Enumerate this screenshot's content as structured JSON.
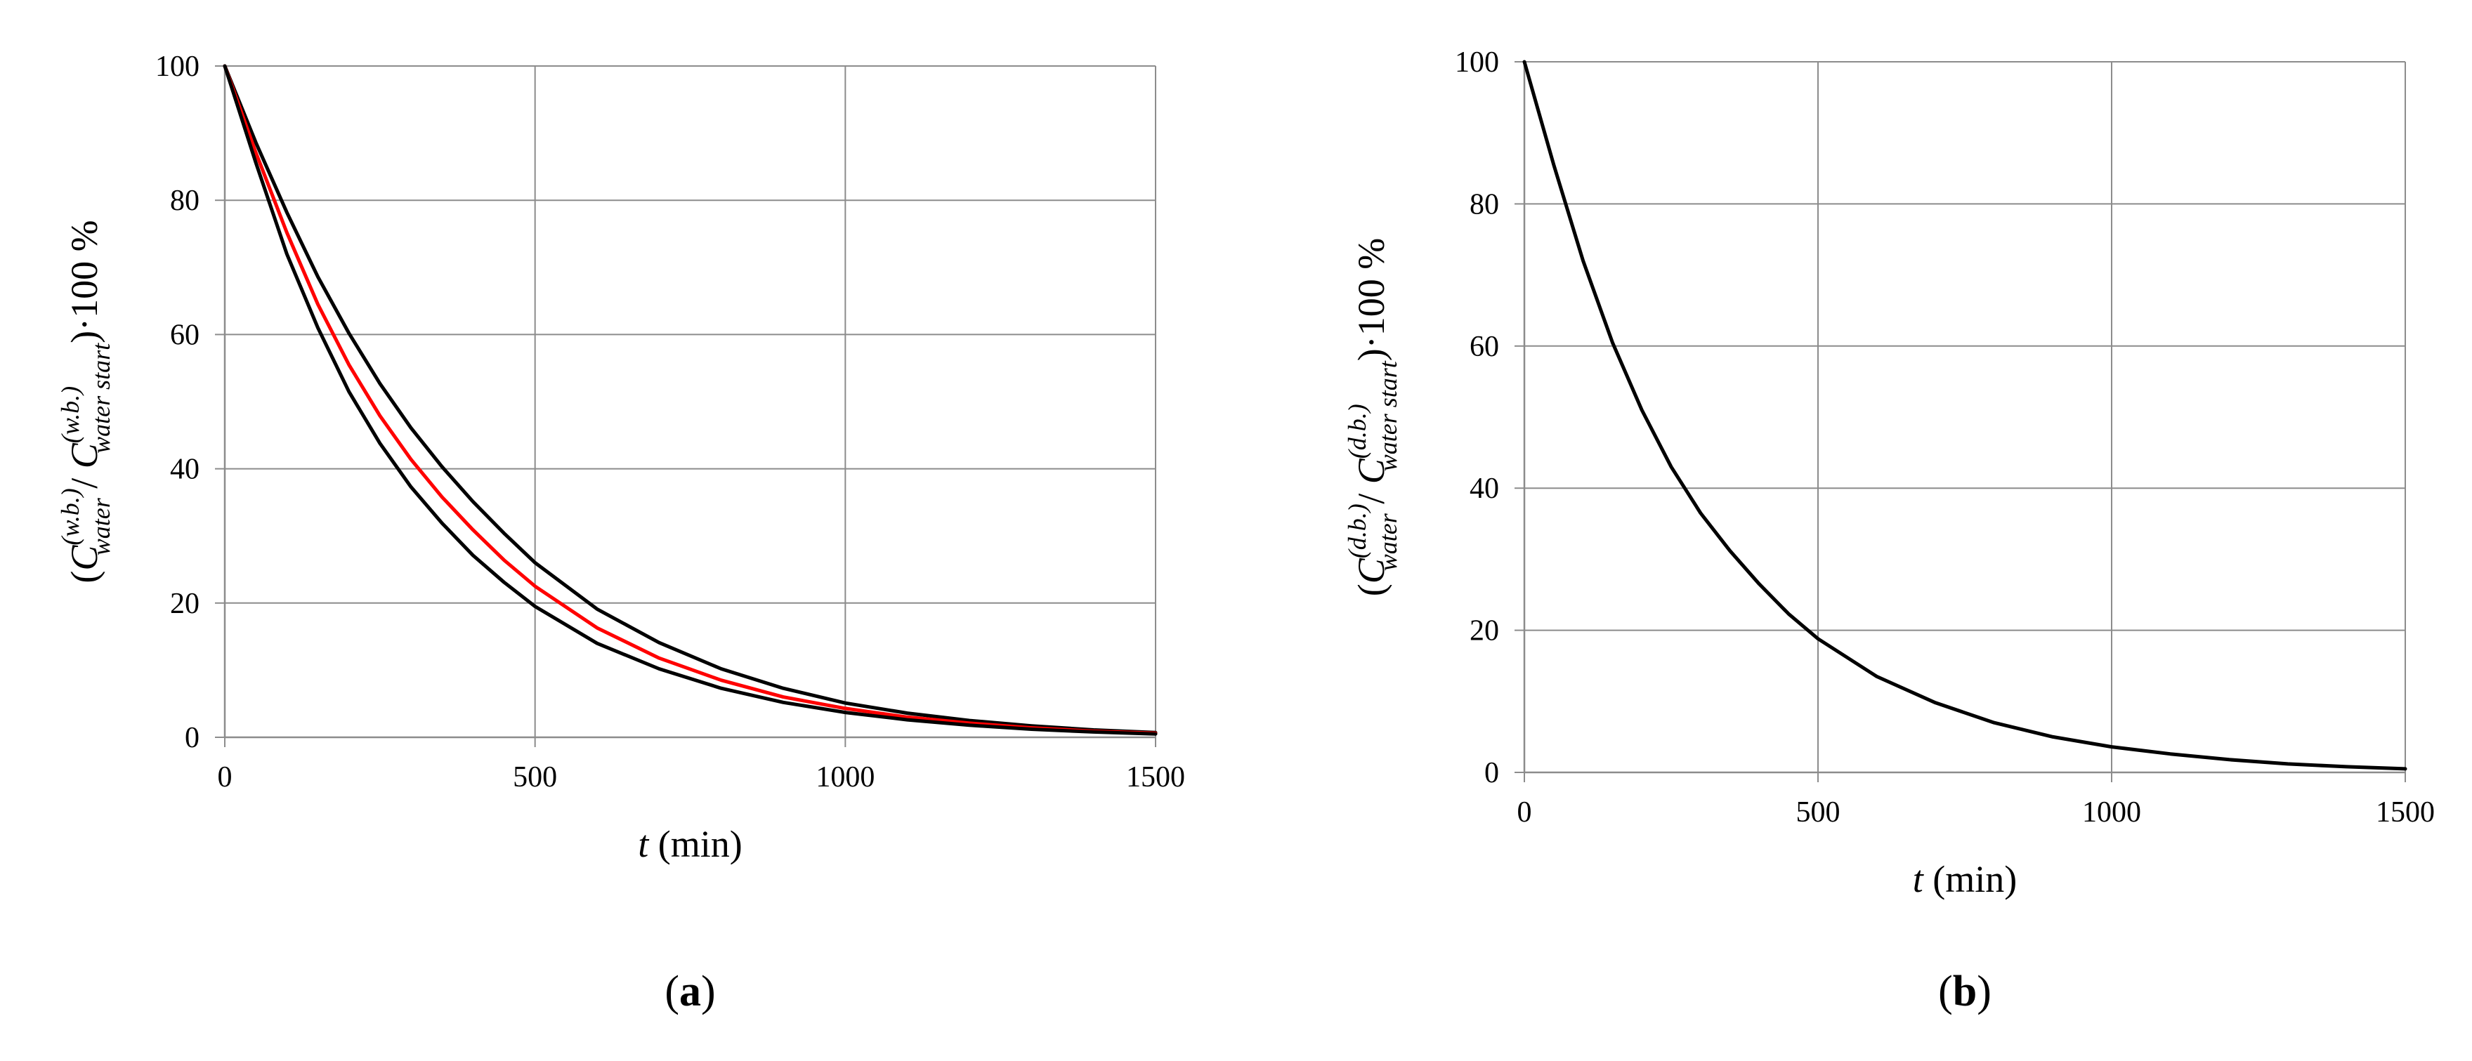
{
  "chart_data": [
    {
      "type": "line",
      "panel_label": "(a)",
      "panel_letter": "a",
      "xlabel": "t (min)",
      "xlabel_var": "t",
      "xlabel_unit": "(min)",
      "ylabel": "(C_water^(w.b.) / C_water start^(w.b.))·100 %",
      "ylabel_parts": {
        "open": "(",
        "var1": "C",
        "sup1": "(w.b.)",
        "sub1": "water",
        "slash": " / ",
        "var2": "C",
        "sup2": "(w.b.)",
        "sub2": "water start",
        "close": ")·100 %"
      },
      "xlim": [
        0,
        1500
      ],
      "ylim": [
        0,
        100
      ],
      "xticks": [
        0,
        500,
        1000,
        1500
      ],
      "yticks": [
        0,
        20,
        40,
        60,
        80,
        100
      ],
      "grid": true,
      "x": [
        0,
        50,
        100,
        150,
        200,
        250,
        300,
        350,
        400,
        450,
        500,
        600,
        700,
        800,
        900,
        1000,
        1100,
        1200,
        1300,
        1400,
        1500
      ],
      "series": [
        {
          "color": "#000000",
          "values": [
            100,
            88.6,
            78.2,
            68.6,
            60.2,
            52.7,
            46.1,
            40.3,
            35.1,
            30.4,
            26.0,
            19.1,
            14.1,
            10.2,
            7.3,
            5.1,
            3.6,
            2.5,
            1.7,
            1.1,
            0.7
          ]
        },
        {
          "color": "#ff0000",
          "values": [
            100,
            87.1,
            75.2,
            64.5,
            55.5,
            47.9,
            41.4,
            35.8,
            30.9,
            26.4,
            22.5,
            16.3,
            11.8,
            8.5,
            6.0,
            4.3,
            3.0,
            2.1,
            1.4,
            0.9,
            0.6
          ]
        },
        {
          "color": "#000000",
          "values": [
            100,
            85.6,
            72.0,
            61.0,
            51.5,
            43.8,
            37.3,
            31.9,
            27.1,
            23.1,
            19.5,
            14.0,
            10.2,
            7.3,
            5.2,
            3.7,
            2.6,
            1.8,
            1.2,
            0.8,
            0.5
          ]
        }
      ]
    },
    {
      "type": "line",
      "panel_label": "(b)",
      "panel_letter": "b",
      "xlabel": "t (min)",
      "xlabel_var": "t",
      "xlabel_unit": "(min)",
      "ylabel": "(C_water^(d.b.) / C_water start^(d.b.))·100 %",
      "ylabel_parts": {
        "open": "(",
        "var1": "C",
        "sup1": "(d.b.)",
        "sub1": "water",
        "slash": " / ",
        "var2": "C",
        "sup2": "(d.b.)",
        "sub2": "water start",
        "close": ")·100 %"
      },
      "xlim": [
        0,
        1500
      ],
      "ylim": [
        0,
        100
      ],
      "xticks": [
        0,
        500,
        1000,
        1500
      ],
      "yticks": [
        0,
        20,
        40,
        60,
        80,
        100
      ],
      "grid": true,
      "x": [
        0,
        50,
        100,
        150,
        200,
        250,
        300,
        350,
        400,
        450,
        500,
        600,
        700,
        800,
        900,
        1000,
        1100,
        1200,
        1300,
        1400,
        1500
      ],
      "series": [
        {
          "color": "#000000",
          "values": [
            100,
            85.5,
            72.0,
            60.5,
            51.0,
            43.0,
            36.5,
            31.2,
            26.5,
            22.3,
            18.8,
            13.5,
            9.8,
            7.0,
            5.0,
            3.6,
            2.6,
            1.8,
            1.2,
            0.8,
            0.5
          ]
        }
      ]
    }
  ]
}
